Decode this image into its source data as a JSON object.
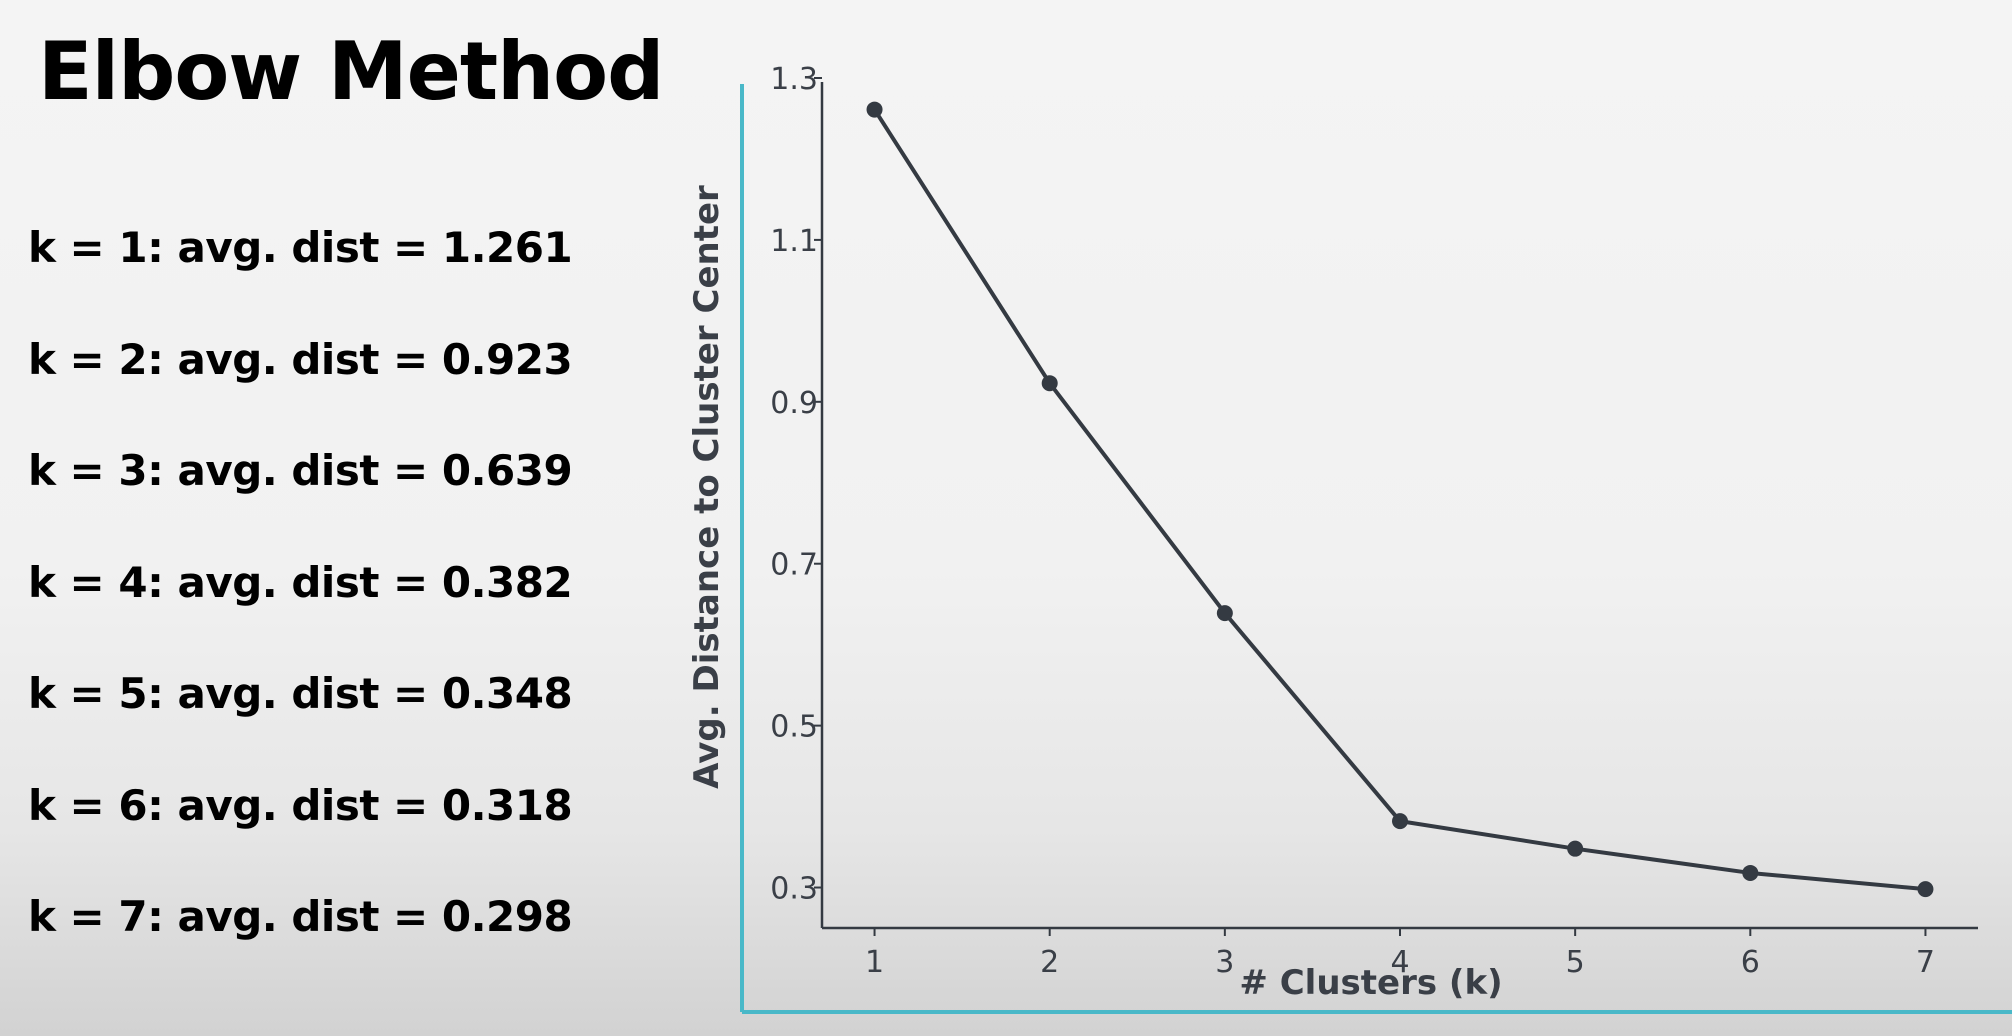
{
  "title": "Elbow Method",
  "list": [
    "k = 1: avg. dist = 1.261",
    "k = 2: avg. dist = 0.923",
    "k = 3: avg. dist = 0.639",
    "k = 4: avg. dist = 0.382",
    "k = 5: avg. dist = 0.348",
    "k = 6: avg. dist = 0.318",
    "k = 7: avg. dist = 0.298"
  ],
  "colors": {
    "frame": "#49b8c8",
    "line": "#343a42",
    "axis": "#343a42"
  },
  "chart_data": {
    "type": "line",
    "title": "",
    "xlabel": "# Clusters (k)",
    "ylabel": "Avg. Distance to Cluster Center",
    "x": [
      1,
      2,
      3,
      4,
      5,
      6,
      7
    ],
    "series": [
      {
        "values": [
          1.261,
          0.923,
          0.639,
          0.382,
          0.348,
          0.318,
          0.298
        ]
      }
    ],
    "xticks": [
      "1",
      "2",
      "3",
      "4",
      "5",
      "6",
      "7"
    ],
    "yticks": [
      "0.3",
      "0.5",
      "0.7",
      "0.9",
      "1.1",
      "1.3"
    ],
    "ylim": [
      0.25,
      1.3
    ],
    "xlim": [
      0.7,
      7.3
    ],
    "grid": false,
    "legend": "none"
  }
}
